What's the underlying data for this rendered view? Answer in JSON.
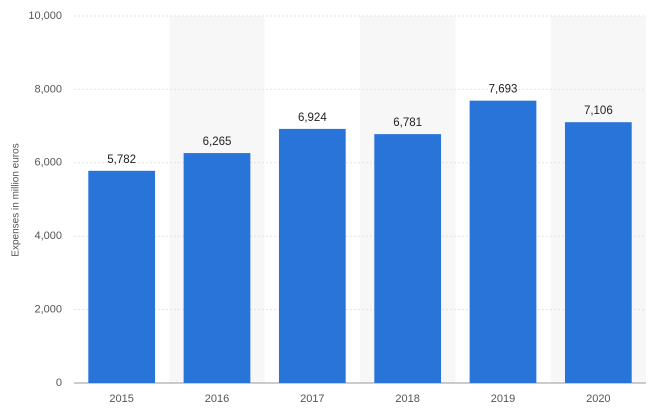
{
  "chart_data": {
    "type": "bar",
    "y_axis_label": "Expenses in million euros",
    "categories": [
      "2015",
      "2016",
      "2017",
      "2018",
      "2019",
      "2020"
    ],
    "values": [
      5782,
      6265,
      6924,
      6781,
      7693,
      7106
    ],
    "value_labels": [
      "5,782",
      "6,265",
      "6,924",
      "6,781",
      "7,693",
      "7,106"
    ],
    "color": "#2874d9",
    "ylim": [
      0,
      10000
    ],
    "yticks": [
      0,
      {
        "value": 2000,
        "label": "2,000"
      },
      {
        "value": 4000,
        "label": "4,000"
      },
      {
        "value": 6000,
        "label": "6,000"
      },
      {
        "value": 8000,
        "label": "8,000"
      },
      {
        "value": 10000,
        "label": "10,000"
      }
    ],
    "grid": true
  }
}
